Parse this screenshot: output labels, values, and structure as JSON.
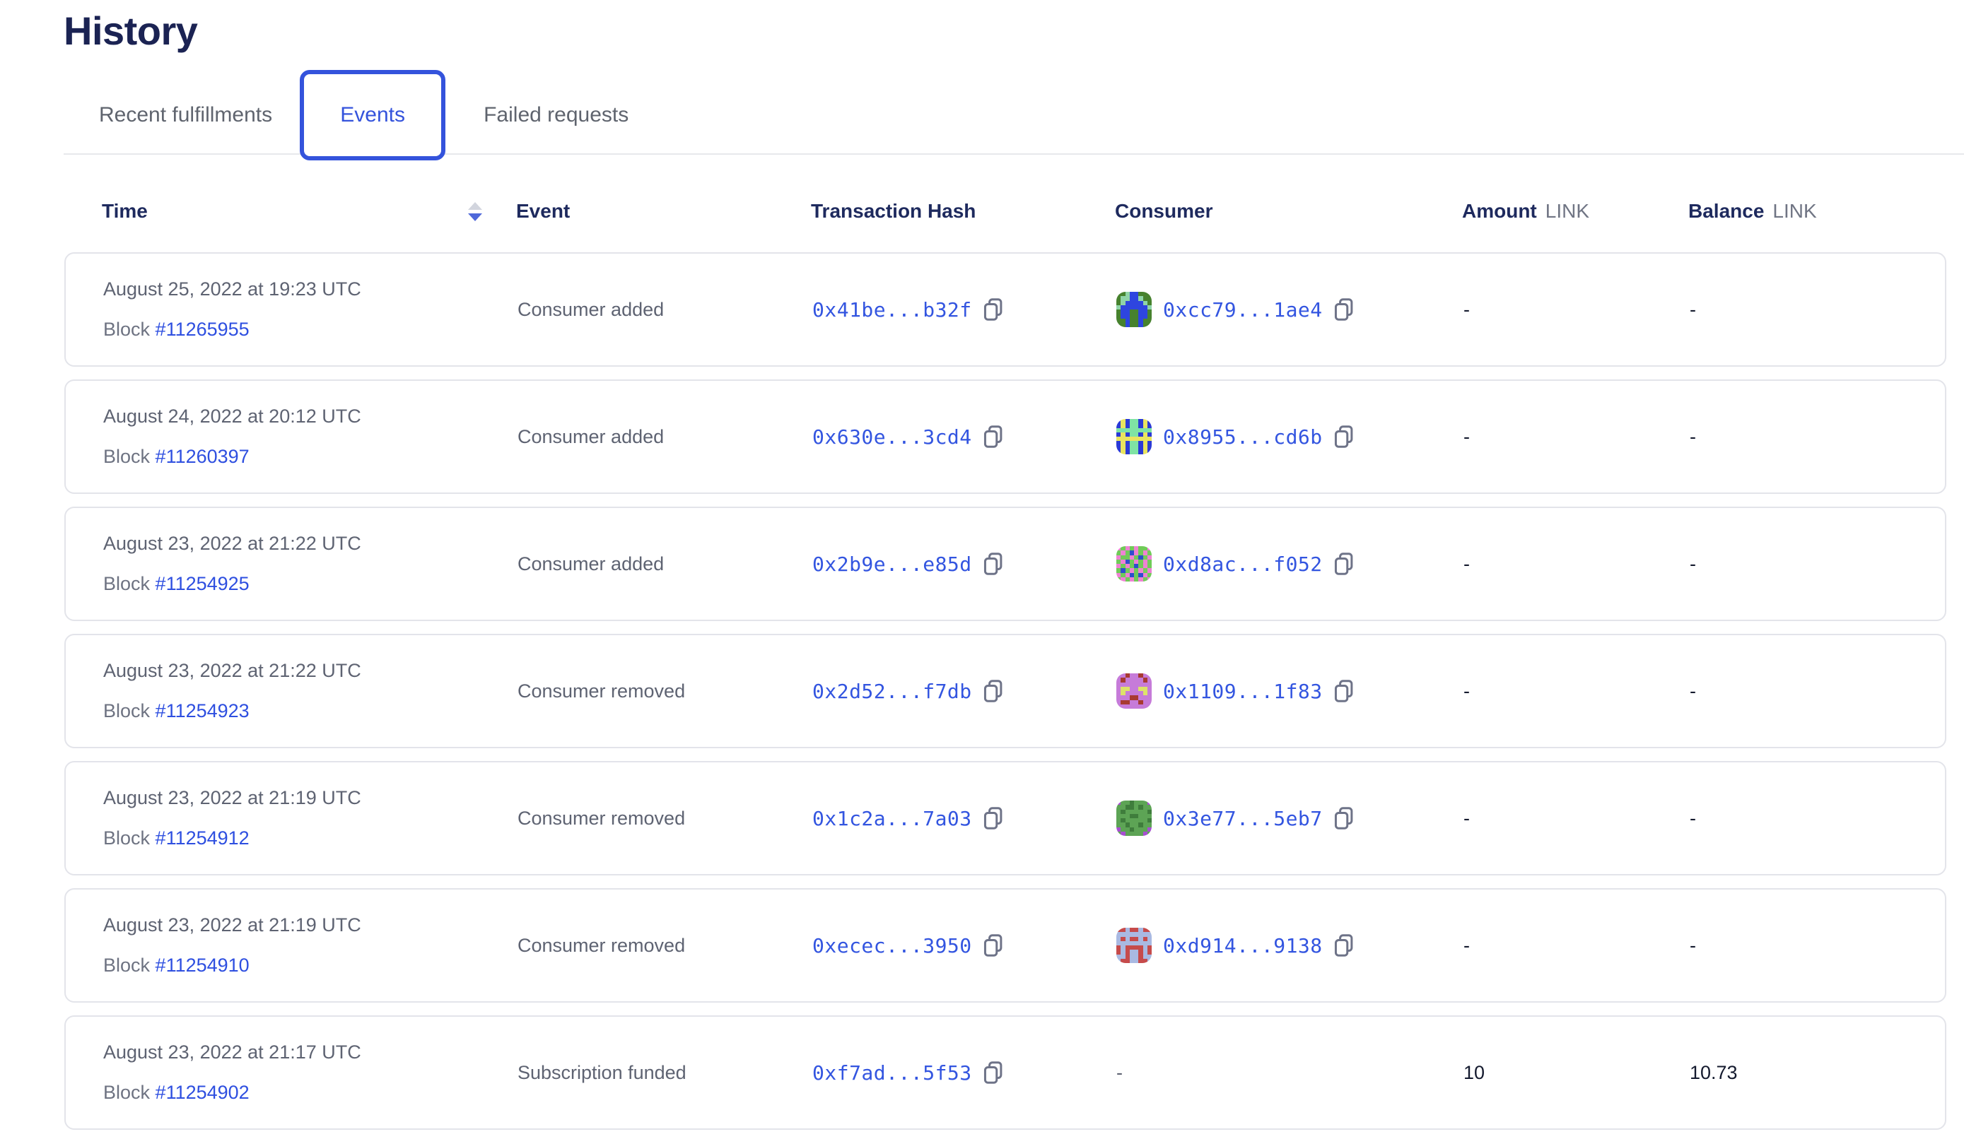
{
  "page": {
    "title": "History"
  },
  "tabs": {
    "items": [
      {
        "label": "Recent fulfillments",
        "active": false
      },
      {
        "label": "Events",
        "active": true
      },
      {
        "label": "Failed requests",
        "active": false
      }
    ]
  },
  "colors": {
    "accent_blue": "#3453dc",
    "link_blue": "#3355e0",
    "heading_navy": "#1e2a5e",
    "body_gray": "#5e6372",
    "sort_up_inactive": "#d2d5de",
    "sort_down_active": "#4f68da",
    "card_border": "#e3e4ea"
  },
  "table": {
    "header": {
      "time": "Time",
      "event": "Event",
      "tx_hash": "Transaction Hash",
      "consumer": "Consumer",
      "amount": "Amount",
      "amount_unit": "LINK",
      "balance": "Balance",
      "balance_unit": "LINK"
    },
    "rows": [
      {
        "date": "August 25, 2022 at 19:23 UTC",
        "block_label": "Block",
        "block": "#11265955",
        "event": "Consumer added",
        "tx": "0x41be...b32f",
        "consumer": "0xcc79...1ae4",
        "amount": "-",
        "balance": "-",
        "avatar": {
          "palette": {
            "g": "#47822e",
            "b": "#2e45df",
            "t": "#8fd4a8"
          },
          "grid": [
            "ggtbbggg",
            "gttbbtgg",
            "gtbbbbtg",
            "tbbbbbbt",
            "gbbggbbg",
            "gbbggbbg",
            "ggbggbgg",
            "ggbggbgg"
          ]
        }
      },
      {
        "date": "August 24, 2022 at 20:12 UTC",
        "block_label": "Block",
        "block": "#11260397",
        "event": "Consumer added",
        "tx": "0x630e...3cd4",
        "consumer": "0x8955...cd6b",
        "amount": "-",
        "balance": "-",
        "avatar": {
          "palette": {
            "b": "#2b3ad6",
            "y": "#e9e45f",
            "t": "#7fe3a4"
          },
          "grid": [
            "bybttbyb",
            "bybttbyb",
            "tttttttt",
            "bybttbyb",
            "yyyyyyyy",
            "bybttbyb",
            "bybttbyb",
            "bybttbyb"
          ]
        }
      },
      {
        "date": "August 23, 2022 at 21:22 UTC",
        "block_label": "Block",
        "block": "#11254925",
        "event": "Consumer added",
        "tx": "0x2b9e...e85d",
        "consumer": "0xd8ac...f052",
        "amount": "-",
        "balance": "-",
        "avatar": {
          "palette": {
            "g": "#70cb58",
            "p": "#ee82d3",
            "b": "#2d4ecd"
          },
          "grid": [
            "pgpgpggp",
            "gpgbpgpg",
            "pggpgbgp",
            "gpbgpgpg",
            "pgpgbgpg",
            "gbgpgpgp",
            "pgpbgbpg",
            "gpgpgpgp"
          ]
        }
      },
      {
        "date": "August 23, 2022 at 21:22 UTC",
        "block_label": "Block",
        "block": "#11254923",
        "event": "Consumer removed",
        "tx": "0x2d52...f7db",
        "consumer": "0x1109...1f83",
        "amount": "-",
        "balance": "-",
        "avatar": {
          "palette": {
            "u": "#c67bd9",
            "y": "#dde26a",
            "r": "#a83a31"
          },
          "grid": [
            "uuruuruu",
            "uruuuuru",
            "uuuuuuuu",
            "uyyuuyyu",
            "uyuuuuyu",
            "uuurruuu",
            "urruuruu",
            "uuuuuuuu"
          ]
        }
      },
      {
        "date": "August 23, 2022 at 21:19 UTC",
        "block_label": "Block",
        "block": "#11254912",
        "event": "Consumer removed",
        "tx": "0x1c2a...7a03",
        "consumer": "0x3e77...5eb7",
        "amount": "-",
        "balance": "-",
        "avatar": {
          "palette": {
            "g": "#5da455",
            "d": "#3f7d3c",
            "u": "#a74fd1"
          },
          "grid": [
            "uggdgggu",
            "ggddgdgg",
            "gdgggggd",
            "gggddggg",
            "gdgggggd",
            "ggdggdgg",
            "uggdgggu",
            "guggggug"
          ]
        }
      },
      {
        "date": "August 23, 2022 at 21:19 UTC",
        "block_label": "Block",
        "block": "#11254910",
        "event": "Consumer removed",
        "tx": "0xecec...3950",
        "consumer": "0xd914...9138",
        "amount": "-",
        "balance": "-",
        "avatar": {
          "palette": {
            "l": "#a9b9e2",
            "r": "#c64b4b"
          },
          "grid": [
            "rrlrrlrr",
            "llllllll",
            "lrlrrlrl",
            "llllllll",
            "rlrrrrlr",
            "rlrllrlr",
            "llrllrll",
            "lrrllrrl"
          ]
        }
      },
      {
        "date": "August 23, 2022 at 21:17 UTC",
        "block_label": "Block",
        "block": "#11254902",
        "event": "Subscription funded",
        "tx": "0xf7ad...5f53",
        "consumer": "-",
        "amount": "10",
        "balance": "10.73"
      }
    ]
  }
}
